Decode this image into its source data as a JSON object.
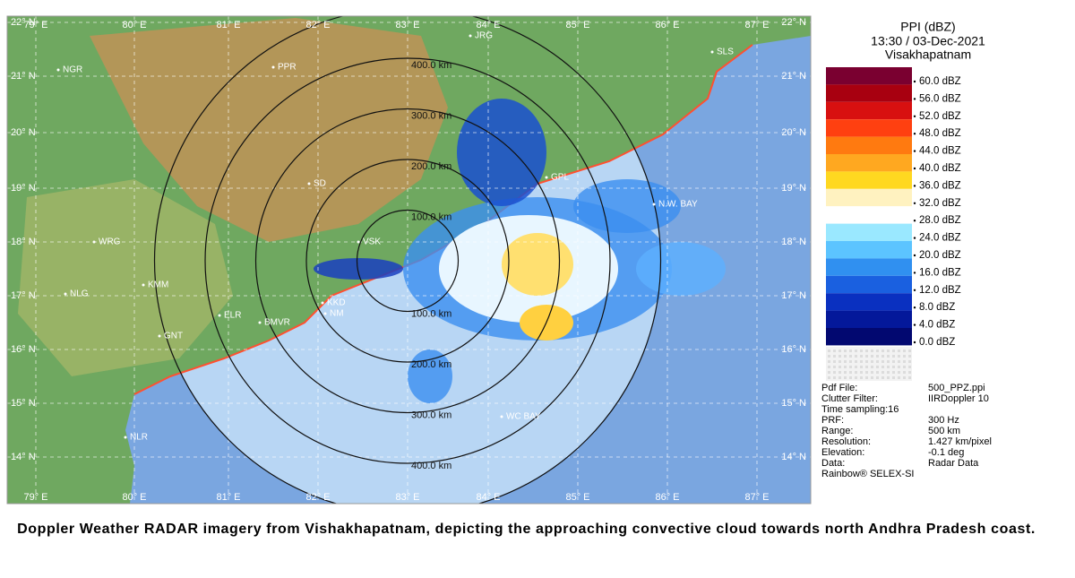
{
  "legend": {
    "title": "PPI (dBZ)",
    "time": "13:30 / 03-Dec-2021",
    "station": "Visakhapatnam",
    "scale": [
      {
        "label": "60.0 dBZ",
        "color": "#7a0030"
      },
      {
        "label": "56.0 dBZ",
        "color": "#a80010"
      },
      {
        "label": "52.0 dBZ",
        "color": "#d81010"
      },
      {
        "label": "48.0 dBZ",
        "color": "#ff4010"
      },
      {
        "label": "44.0 dBZ",
        "color": "#ff7a10"
      },
      {
        "label": "40.0 dBZ",
        "color": "#ffa820"
      },
      {
        "label": "36.0 dBZ",
        "color": "#ffd820"
      },
      {
        "label": "32.0 dBZ",
        "color": "#fff2c0"
      },
      {
        "label": "28.0 dBZ",
        "color": "#ffffff"
      },
      {
        "label": "24.0 dBZ",
        "color": "#9ae8ff"
      },
      {
        "label": "20.0 dBZ",
        "color": "#5cc4ff"
      },
      {
        "label": "16.0 dBZ",
        "color": "#3090f0"
      },
      {
        "label": "12.0 dBZ",
        "color": "#1a60e0"
      },
      {
        "label": "8.0 dBZ",
        "color": "#0a30c0"
      },
      {
        "label": "4.0 dBZ",
        "color": "#04189a"
      },
      {
        "label": "0.0 dBZ",
        "color": "#020870"
      }
    ]
  },
  "metadata": [
    [
      "Pdf File:",
      "500_PPZ.ppi"
    ],
    [
      "Clutter Filter:",
      "IIRDoppler 10"
    ],
    [
      "Time sampling:16"
    ],
    [
      "PRF:",
      "300 Hz"
    ],
    [
      "Range:",
      "500 km"
    ],
    [
      "Resolution:",
      "1.427 km/pixel"
    ],
    [
      "Elevation:",
      "-0.1 deg"
    ],
    [
      "Data:",
      "Radar Data"
    ],
    [
      "Rainbow® SELEX-SI"
    ]
  ],
  "map": {
    "latitudes": [
      "22° N",
      "21° N",
      "20° N",
      "19° N",
      "18° N",
      "17° N",
      "16° N",
      "15° N",
      "14° N"
    ],
    "longitudes": [
      "79° E",
      "80° E",
      "81° E",
      "82° E",
      "83° E",
      "84° E",
      "85° E",
      "86° E",
      "87° E"
    ],
    "range_rings": [
      "100.0 km",
      "200.0 km",
      "300.0 km",
      "400.0 km"
    ],
    "places": [
      "NGR",
      "PPR",
      "JRG",
      "GPL",
      "N.W. BAY",
      "WRG",
      "KMM",
      "NLG",
      "ELR",
      "BMVR",
      "GNT",
      "NM",
      "KKD",
      "WC BAY",
      "NLR",
      "SD",
      "VSK",
      "SLS"
    ]
  },
  "caption": "Doppler Weather RADAR imagery from Vishakhapatnam, depicting the approaching convective cloud towards north Andhra Pradesh coast."
}
